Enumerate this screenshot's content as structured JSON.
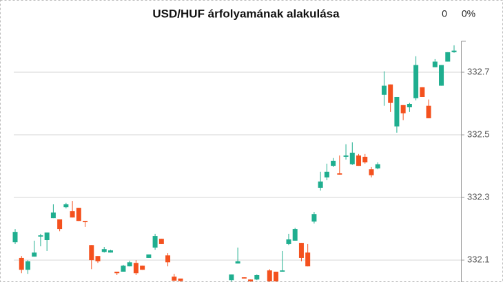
{
  "chart_data": {
    "type": "candlestick",
    "title": "USD/HUF árfolyamának alakulása",
    "change": "0",
    "change_pct": "0%",
    "up_color": "#1fae8f",
    "down_color": "#f4511e",
    "open": [
      332.157,
      332.107,
      332.069,
      332.111,
      332.175,
      332.164,
      332.234,
      332.23,
      332.269,
      332.256,
      332.267,
      332.225,
      332.148,
      332.113,
      332.126,
      332.124,
      332.063,
      332.063,
      332.08,
      332.091,
      332.082,
      332.107,
      332.14,
      332.168,
      332.115,
      332.047,
      332.041,
      null,
      null,
      null,
      null,
      null,
      null,
      null,
      332.036,
      332.089,
      332.045,
      332.038,
      332.038,
      null,
      332.067,
      332.063,
      332.063,
      332.151,
      332.162,
      332.155,
      332.124,
      332.223,
      332.331,
      332.364,
      332.401,
      332.377,
      332.43,
      332.406,
      332.434,
      332.43,
      332.39,
      332.393,
      332.628,
      332.661,
      332.527,
      332.595,
      332.588,
      332.617,
      332.652,
      332.593,
      332.716,
      332.657,
      332.734,
      332.764
    ],
    "high": [
      332.199,
      332.113,
      332.1,
      332.162,
      332.184,
      332.188,
      332.278,
      332.23,
      332.283,
      332.289,
      332.267,
      332.225,
      332.148,
      332.113,
      332.142,
      332.133,
      332.063,
      332.085,
      332.098,
      332.1,
      332.082,
      332.118,
      332.184,
      332.168,
      332.122,
      332.056,
      332.041,
      null,
      null,
      null,
      null,
      null,
      null,
      null,
      332.054,
      332.14,
      332.045,
      332.038,
      332.054,
      null,
      332.071,
      332.063,
      332.129,
      332.184,
      332.203,
      332.155,
      332.151,
      332.254,
      332.382,
      332.408,
      332.426,
      332.434,
      332.47,
      332.476,
      332.439,
      332.439,
      332.397,
      332.412,
      332.703,
      332.661,
      332.621,
      332.595,
      332.602,
      332.751,
      332.652,
      332.613,
      332.742,
      332.723,
      332.764,
      332.786
    ],
    "low": [
      332.151,
      332.058,
      332.056,
      332.111,
      332.144,
      332.129,
      332.234,
      332.192,
      332.265,
      332.236,
      332.225,
      332.206,
      332.071,
      332.091,
      332.124,
      332.124,
      332.052,
      332.063,
      332.08,
      332.052,
      332.069,
      332.107,
      332.133,
      332.151,
      332.08,
      332.034,
      332.031,
      null,
      null,
      null,
      null,
      null,
      null,
      null,
      332.031,
      332.089,
      332.041,
      332.031,
      332.036,
      null,
      332.031,
      332.031,
      332.063,
      332.148,
      332.162,
      332.096,
      332.08,
      332.217,
      332.322,
      332.355,
      332.397,
      332.373,
      332.421,
      332.404,
      332.401,
      332.408,
      332.364,
      332.39,
      332.593,
      332.573,
      332.507,
      332.547,
      332.573,
      332.61,
      332.621,
      332.553,
      332.716,
      332.657,
      332.734,
      332.762
    ],
    "close": [
      332.19,
      332.069,
      332.096,
      332.124,
      332.179,
      332.188,
      332.252,
      332.199,
      332.278,
      332.236,
      332.225,
      332.221,
      332.1,
      332.096,
      332.135,
      332.131,
      332.058,
      332.082,
      332.093,
      332.058,
      332.069,
      332.118,
      332.177,
      332.151,
      332.093,
      332.034,
      332.033,
      null,
      null,
      null,
      null,
      null,
      null,
      null,
      332.054,
      332.096,
      332.041,
      332.032,
      332.052,
      null,
      332.032,
      332.032,
      332.067,
      332.166,
      332.199,
      332.107,
      332.08,
      332.247,
      332.351,
      332.382,
      332.417,
      332.373,
      332.434,
      332.443,
      332.401,
      332.412,
      332.371,
      332.406,
      332.657,
      332.602,
      332.621,
      332.569,
      332.599,
      332.723,
      332.621,
      332.553,
      332.734,
      332.723,
      332.764,
      332.769
    ],
    "ylim": [
      332.03,
      332.8
    ],
    "yticks": [
      332.1,
      332.3,
      332.5,
      332.7
    ],
    "grid": true
  }
}
